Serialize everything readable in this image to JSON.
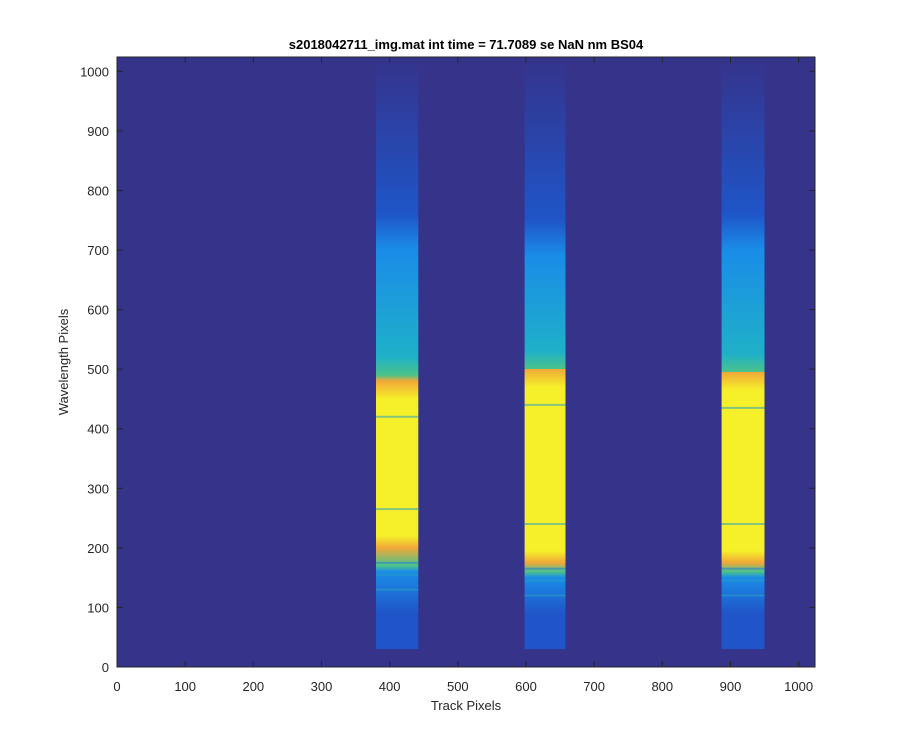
{
  "chart_data": {
    "type": "heatmap",
    "title": "s2018042711_img.mat int time = 71.7089 se  NaN nm BS04",
    "xlabel": "Track Pixels",
    "ylabel": "Wavelength Pixels",
    "xlim": [
      0,
      1024
    ],
    "ylim": [
      0,
      1024
    ],
    "xticks": [
      "0",
      "100",
      "200",
      "300",
      "400",
      "500",
      "600",
      "700",
      "800",
      "900",
      "1000"
    ],
    "yticks": [
      "0",
      "100",
      "200",
      "300",
      "400",
      "500",
      "600",
      "700",
      "800",
      "900",
      "1000"
    ],
    "background_color": "#35338a",
    "colormap": [
      "#35338a",
      "#1f55c8",
      "#1a8ce8",
      "#1fb0c8",
      "#4cc38a",
      "#d4b43e",
      "#f0a838",
      "#f5f02a"
    ],
    "grid": false,
    "tracks": [
      {
        "x_start": 380,
        "x_end": 442,
        "y_start": 30,
        "y_end": 1024,
        "bright_range": [
          200,
          480
        ],
        "mid_range": [
          170,
          520
        ],
        "blue_top": 760
      },
      {
        "x_start": 598,
        "x_end": 658,
        "y_start": 30,
        "y_end": 1024,
        "bright_range": [
          175,
          500
        ],
        "mid_range": [
          160,
          530
        ],
        "blue_top": 750
      },
      {
        "x_start": 887,
        "x_end": 950,
        "y_start": 30,
        "y_end": 1024,
        "bright_range": [
          175,
          495
        ],
        "mid_range": [
          160,
          525
        ],
        "blue_top": 760
      }
    ]
  }
}
